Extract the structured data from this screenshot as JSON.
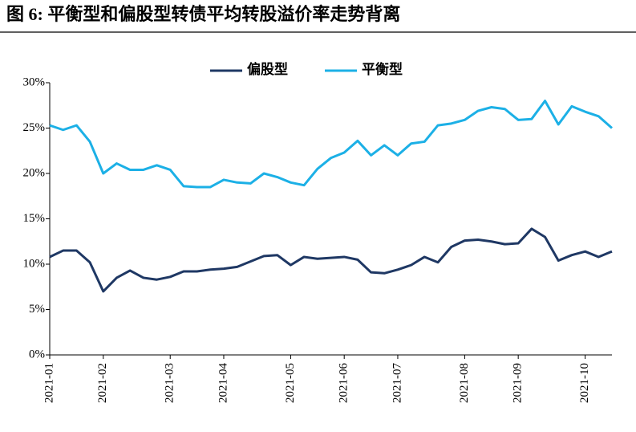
{
  "chart_data": {
    "type": "line",
    "title": "图 6: 平衡型和偏股型转债平均转股溢价率走势背离",
    "categories": [
      "2021-01",
      null,
      null,
      null,
      "2021-02",
      null,
      null,
      null,
      null,
      "2021-03",
      null,
      null,
      null,
      "2021-04",
      null,
      null,
      null,
      null,
      "2021-05",
      null,
      null,
      null,
      "2021-06",
      null,
      null,
      null,
      "2021-07",
      null,
      null,
      null,
      null,
      "2021-08",
      null,
      null,
      null,
      "2021-09",
      null,
      null,
      null,
      null,
      "2021-10",
      null,
      null
    ],
    "series": [
      {
        "name": "偏股型",
        "color": "#1f3864",
        "values": [
          10.8,
          11.5,
          11.5,
          10.2,
          7.0,
          8.5,
          9.3,
          8.5,
          8.3,
          8.6,
          9.2,
          9.2,
          9.4,
          9.5,
          9.7,
          10.3,
          10.9,
          11.0,
          9.9,
          10.8,
          10.6,
          10.7,
          10.8,
          10.5,
          9.1,
          9.0,
          9.4,
          9.9,
          10.8,
          10.2,
          11.9,
          12.6,
          12.7,
          12.5,
          12.2,
          12.3,
          13.9,
          13.0,
          10.4,
          11.0,
          11.4,
          10.8,
          11.4
        ]
      },
      {
        "name": "平衡型",
        "color": "#1cb0e6",
        "values": [
          25.3,
          24.8,
          25.3,
          23.5,
          20.0,
          21.1,
          20.4,
          20.4,
          20.9,
          20.4,
          18.6,
          18.5,
          18.5,
          19.3,
          19.0,
          18.9,
          20.0,
          19.6,
          19.0,
          18.7,
          20.5,
          21.7,
          22.3,
          23.6,
          22.0,
          23.1,
          22.0,
          23.3,
          23.5,
          25.3,
          25.5,
          25.9,
          26.9,
          27.3,
          27.1,
          25.9,
          26.0,
          28.0,
          25.4,
          27.4,
          26.8,
          26.3,
          25.0
        ]
      }
    ],
    "ylim": [
      0,
      30
    ],
    "yticks": [
      {
        "value": 0,
        "label": "0%"
      },
      {
        "value": 5,
        "label": "5%"
      },
      {
        "value": 10,
        "label": "10%"
      },
      {
        "value": 15,
        "label": "15%"
      },
      {
        "value": 20,
        "label": "20%"
      },
      {
        "value": 25,
        "label": "25%"
      },
      {
        "value": 30,
        "label": "30%"
      }
    ],
    "legend": "top"
  }
}
